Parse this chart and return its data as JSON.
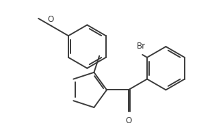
{
  "bg_color": "#ffffff",
  "line_color": "#3a3a3a",
  "line_width": 1.4,
  "text_color": "#3a3a3a",
  "font_size": 8.5,
  "br_font_size": 8.5,
  "xlim": [
    -2.0,
    9.5
  ],
  "ylim": [
    -0.5,
    5.5
  ],
  "figsize": [
    3.26,
    1.9
  ],
  "dpi": 100
}
